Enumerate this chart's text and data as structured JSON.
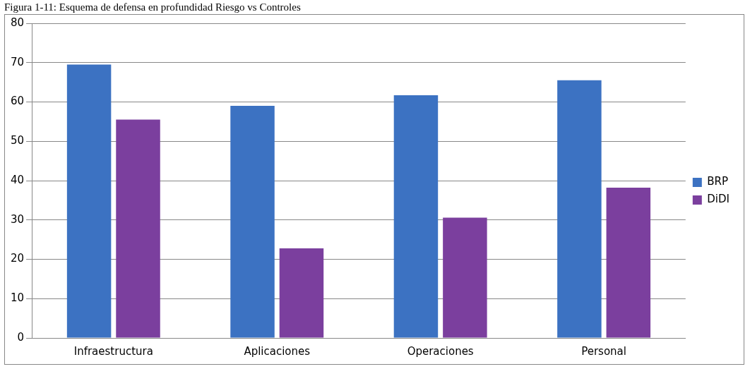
{
  "chart_data": {
    "type": "bar",
    "title": "Figura 1-11: Esquema de defensa en profundidad Riesgo vs Controles",
    "categories": [
      "Infraestructura",
      "Aplicaciones",
      "Operaciones",
      "Personal"
    ],
    "series": [
      {
        "name": "BRP",
        "color": "#3c72c2",
        "values": [
          69.5,
          59,
          61.7,
          65.5
        ]
      },
      {
        "name": "DiDI",
        "color": "#7b3f9e",
        "values": [
          55.5,
          22.8,
          30.6,
          38.2
        ]
      }
    ],
    "ylim": [
      0,
      80
    ],
    "yticks": [
      0,
      10,
      20,
      30,
      40,
      50,
      60,
      70,
      80
    ],
    "grid": "y",
    "legend": "right"
  }
}
